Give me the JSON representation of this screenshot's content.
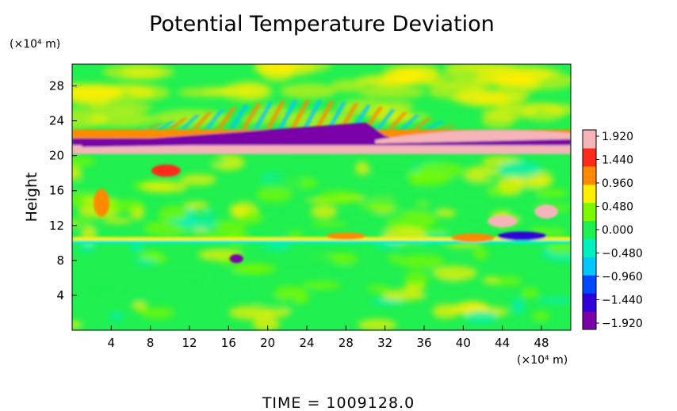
{
  "chart_data": {
    "type": "heatmap",
    "title": "Potential Temperature Deviation",
    "ylabel": "Height",
    "y_unit": "(×10⁴ m)",
    "x_unit": "(×10⁴ m)",
    "x_ticks": [
      "4",
      "8",
      "12",
      "16",
      "20",
      "24",
      "28",
      "32",
      "36",
      "40",
      "44",
      "48"
    ],
    "y_ticks": [
      "4",
      "8",
      "12",
      "16",
      "20",
      "24",
      "28"
    ],
    "xlim": [
      0,
      51
    ],
    "ylim": [
      0,
      30.5
    ],
    "colorbar": {
      "ticks": [
        "1.920",
        "1.440",
        "0.960",
        "0.480",
        "0.000",
        "−0.480",
        "−0.960",
        "−1.440",
        "−1.920"
      ],
      "range": [
        -1.92,
        1.92
      ]
    },
    "colormap": [
      "#7a00a8",
      "#3200d8",
      "#0048ff",
      "#00c8ff",
      "#00f0c0",
      "#20f050",
      "#7cf800",
      "#ffee00",
      "#ff8a00",
      "#ff2a1a",
      "#f4b4b8"
    ],
    "features": [
      {
        "desc": "upper cool band",
        "x": [
          0,
          51
        ],
        "y": [
          21.0,
          22.0
        ],
        "value": -1.92
      },
      {
        "desc": "warm layer",
        "x": [
          0,
          51
        ],
        "y": [
          20.2,
          21.2
        ],
        "value": 1.92
      },
      {
        "desc": "warm layer upper",
        "x": [
          0,
          51
        ],
        "y": [
          22.0,
          23.0
        ],
        "value": 1.2
      },
      {
        "desc": "weak warm line",
        "x": [
          0,
          51
        ],
        "y": [
          10.3,
          10.7
        ],
        "value": 0.7
      },
      {
        "desc": "weak cool line",
        "x": [
          0,
          51
        ],
        "y": [
          9.9,
          10.3
        ],
        "value": -0.5
      }
    ],
    "time_label": "TIME = 1009128.0"
  }
}
